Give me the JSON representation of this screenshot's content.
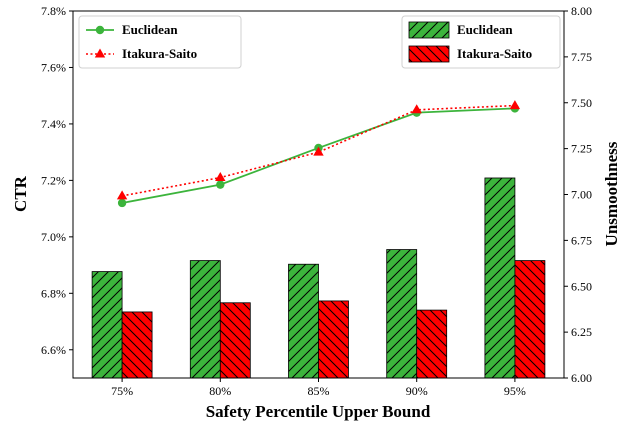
{
  "chart_data": {
    "type": "bar",
    "xlabel": "Safety Percentile Upper Bound",
    "ylabel_left": "CTR",
    "ylabel_right": "Unsmoothness",
    "categories": [
      "75%",
      "80%",
      "85%",
      "90%",
      "95%"
    ],
    "left_axis": {
      "ylim": [
        6.5,
        7.8
      ],
      "ticks": [
        "6.6%",
        "6.8%",
        "7.0%",
        "7.2%",
        "7.4%",
        "7.6%",
        "7.8%"
      ],
      "tick_values": [
        6.6,
        6.8,
        7.0,
        7.2,
        7.4,
        7.6,
        7.8
      ]
    },
    "right_axis": {
      "ylim": [
        6.0,
        8.0
      ],
      "ticks": [
        "6.00",
        "6.25",
        "6.50",
        "6.75",
        "7.00",
        "7.25",
        "7.50",
        "7.75",
        "8.00"
      ],
      "tick_values": [
        6.0,
        6.25,
        6.5,
        6.75,
        7.0,
        7.25,
        7.5,
        7.75,
        8.0
      ]
    },
    "line_series": [
      {
        "name": "Euclidean",
        "axis": "left",
        "color": "#3cb43c",
        "marker": "circle",
        "style": "solid",
        "values": [
          7.12,
          7.185,
          7.315,
          7.44,
          7.455
        ]
      },
      {
        "name": "Itakura-Saito",
        "axis": "left",
        "color": "#ff0000",
        "marker": "triangle",
        "style": "dotted",
        "values": [
          7.145,
          7.21,
          7.3,
          7.45,
          7.465
        ]
      }
    ],
    "bar_series": [
      {
        "name": "Euclidean",
        "axis": "right",
        "color": "#3cb43c",
        "hatch": "/",
        "values": [
          6.58,
          6.64,
          6.62,
          6.7,
          7.09
        ]
      },
      {
        "name": "Itakura-Saito",
        "axis": "right",
        "color": "#ff0000",
        "hatch": "\\",
        "values": [
          6.36,
          6.41,
          6.42,
          6.37,
          6.64
        ]
      }
    ],
    "legend_lines_position": "top-left",
    "legend_bars_position": "top-right",
    "grid": false
  }
}
